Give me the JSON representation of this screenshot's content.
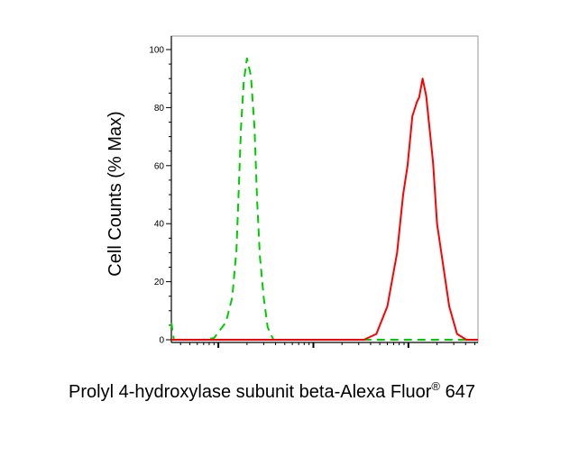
{
  "chart_data": {
    "type": "line",
    "title": "",
    "xlabel": "Prolyl 4-hydroxylase subunit beta-Alexa Fluor",
    "xlabel_superscript": "®",
    "xlabel_suffix": " 647",
    "ylabel": "Cell Counts (% Max)",
    "xscale": "log",
    "xlim": [
      3.2,
      5400
    ],
    "ylim": [
      0,
      105
    ],
    "yticks": [
      0,
      20,
      40,
      60,
      80,
      100
    ],
    "ytick_labels": [
      "0",
      "20",
      "40",
      "60",
      "80",
      "100"
    ],
    "y_minor_step": 5,
    "x_major_ticks": [
      10,
      100,
      1000
    ],
    "x_tick_labels_shown": false,
    "grid": false,
    "legend": "none",
    "series": [
      {
        "color": "#00cc00",
        "style": "dashed",
        "x": [
          3.2,
          3.4,
          6.9,
          9,
          12,
          14,
          15.5,
          16.5,
          17.3,
          18.5,
          20,
          22,
          24,
          25.6,
          27.3,
          30,
          33,
          38,
          5400
        ],
        "y": [
          6,
          0,
          0,
          0.6,
          6,
          14.6,
          31,
          54,
          73,
          89,
          97,
          91,
          73,
          48,
          29,
          14.6,
          4.3,
          0,
          0
        ]
      },
      {
        "color": "#ff0000",
        "style": "solid",
        "x": [
          3.2,
          100,
          340,
          460,
          600,
          760,
          880,
          980,
          1100,
          1230,
          1300,
          1410,
          1540,
          1820,
          2000,
          2340,
          2690,
          3250,
          4070,
          5400
        ],
        "y": [
          0,
          0,
          0,
          2,
          11.5,
          30,
          50,
          60,
          77,
          82,
          83.5,
          90,
          84,
          61,
          40,
          25,
          11.5,
          2,
          0,
          0
        ]
      }
    ]
  }
}
